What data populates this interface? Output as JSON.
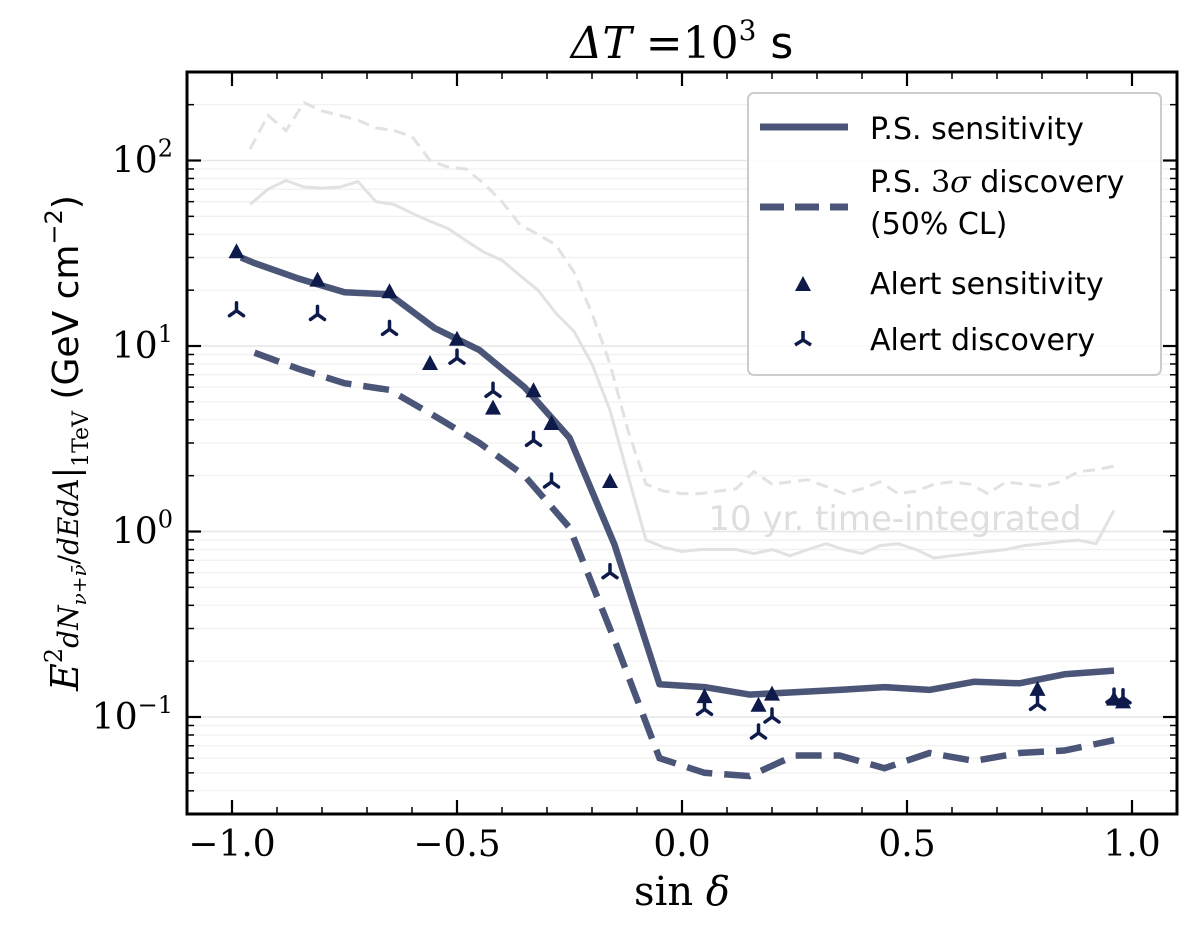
{
  "chart_data": {
    "type": "line",
    "title": "ΔT =10³ s",
    "xlabel": "sin δ",
    "ylabel": "E² dN/dEdA|1TeV (GeV cm⁻²)",
    "xlim": [
      -1.1,
      1.1
    ],
    "ylim": [
      0.03,
      300
    ],
    "yscale": "log",
    "xticks": [
      -1.0,
      -0.5,
      0.0,
      0.5,
      1.0
    ],
    "xtick_labels": [
      "−1.0",
      "−0.5",
      "0.0",
      "0.5",
      "1.0"
    ],
    "yticks": [
      0.1,
      1,
      10,
      100
    ],
    "ytick_labels": [
      "10",
      "10",
      "10",
      "10"
    ],
    "ytick_exponents": [
      "−1",
      "0",
      "1",
      "2"
    ],
    "grid": true,
    "legend_position": "top-right",
    "annotation": "10 yr. time-integrated",
    "series": [
      {
        "name": "P.S. sensitivity",
        "style": "solid",
        "color": "#4a5577",
        "x": [
          -0.98,
          -0.95,
          -0.85,
          -0.75,
          -0.65,
          -0.55,
          -0.45,
          -0.35,
          -0.25,
          -0.15,
          -0.05,
          0.05,
          0.15,
          0.25,
          0.35,
          0.45,
          0.55,
          0.65,
          0.75,
          0.85,
          0.96
        ],
        "y": [
          30,
          28,
          23,
          19.5,
          19,
          12.5,
          9.5,
          6,
          3.2,
          0.85,
          0.15,
          0.145,
          0.132,
          0.136,
          0.14,
          0.145,
          0.14,
          0.155,
          0.152,
          0.17,
          0.178
        ]
      },
      {
        "name": "P.S. 3σ discovery (50% CL)",
        "style": "dashed",
        "color": "#4a5577",
        "x": [
          -0.95,
          -0.85,
          -0.75,
          -0.65,
          -0.55,
          -0.45,
          -0.35,
          -0.25,
          -0.15,
          -0.05,
          0.05,
          0.15,
          0.25,
          0.35,
          0.45,
          0.55,
          0.65,
          0.75,
          0.85,
          0.96
        ],
        "y": [
          9.2,
          7.5,
          6.3,
          5.8,
          4.2,
          3.0,
          2.0,
          1.05,
          0.26,
          0.06,
          0.05,
          0.048,
          0.062,
          0.062,
          0.053,
          0.064,
          0.058,
          0.064,
          0.066,
          0.075
        ]
      },
      {
        "name": "Alert sensitivity",
        "style": "marker-triangle",
        "color": "#0d1a4a",
        "x": [
          -0.99,
          -0.81,
          -0.65,
          -0.56,
          -0.5,
          -0.42,
          -0.33,
          -0.29,
          -0.16,
          0.05,
          0.17,
          0.2,
          0.79,
          0.96,
          0.98
        ],
        "y": [
          32,
          22.5,
          19.5,
          8,
          10.8,
          4.6,
          5.7,
          3.8,
          1.85,
          0.128,
          0.115,
          0.132,
          0.14,
          0.124,
          0.12
        ]
      },
      {
        "name": "Alert discovery",
        "style": "marker-tri-down",
        "color": "#0d1a4a",
        "x": [
          -0.99,
          -0.81,
          -0.65,
          -0.5,
          -0.42,
          -0.33,
          -0.29,
          -0.16,
          0.05,
          0.17,
          0.2,
          0.79,
          0.96,
          0.98
        ],
        "y": [
          15.5,
          14.8,
          12.3,
          8.6,
          5.7,
          3.1,
          1.85,
          0.6,
          0.11,
          0.082,
          0.1,
          0.117,
          0.128,
          0.127
        ]
      },
      {
        "style": "solid-faint",
        "color": "#e2e2e2",
        "x": [
          -0.96,
          -0.92,
          -0.88,
          -0.84,
          -0.8,
          -0.76,
          -0.72,
          -0.68,
          -0.64,
          -0.6,
          -0.56,
          -0.52,
          -0.48,
          -0.44,
          -0.4,
          -0.36,
          -0.32,
          -0.28,
          -0.24,
          -0.2,
          -0.16,
          -0.12,
          -0.08,
          -0.04,
          0.0,
          0.04,
          0.08,
          0.12,
          0.16,
          0.2,
          0.24,
          0.28,
          0.32,
          0.36,
          0.4,
          0.44,
          0.48,
          0.52,
          0.56,
          0.6,
          0.64,
          0.68,
          0.72,
          0.76,
          0.8,
          0.84,
          0.88,
          0.92,
          0.96
        ],
        "y": [
          58,
          70,
          78,
          72,
          71,
          72,
          77,
          60,
          58,
          52,
          47,
          43,
          37,
          32,
          29,
          24,
          20,
          15,
          12,
          8,
          4.5,
          2.0,
          0.9,
          0.82,
          0.78,
          0.8,
          0.8,
          0.8,
          0.76,
          0.8,
          0.74,
          0.8,
          0.86,
          0.8,
          0.76,
          0.84,
          0.86,
          0.8,
          0.72,
          0.74,
          0.76,
          0.78,
          0.8,
          0.84,
          0.86,
          0.88,
          0.9,
          0.86,
          1.3
        ]
      },
      {
        "style": "dashed-faint",
        "color": "#e2e2e2",
        "x": [
          -0.96,
          -0.92,
          -0.88,
          -0.84,
          -0.8,
          -0.76,
          -0.72,
          -0.68,
          -0.64,
          -0.6,
          -0.56,
          -0.52,
          -0.48,
          -0.44,
          -0.4,
          -0.36,
          -0.32,
          -0.28,
          -0.24,
          -0.2,
          -0.16,
          -0.12,
          -0.08,
          -0.04,
          0.0,
          0.04,
          0.08,
          0.12,
          0.16,
          0.2,
          0.24,
          0.28,
          0.32,
          0.36,
          0.4,
          0.44,
          0.48,
          0.52,
          0.56,
          0.6,
          0.64,
          0.68,
          0.72,
          0.76,
          0.8,
          0.84,
          0.88,
          0.92,
          0.96
        ],
        "y": [
          115,
          175,
          145,
          205,
          185,
          175,
          165,
          150,
          145,
          135,
          100,
          92,
          90,
          75,
          60,
          45,
          40,
          35,
          25,
          15,
          8,
          3.5,
          1.8,
          1.65,
          1.6,
          1.6,
          1.65,
          1.7,
          2.1,
          1.8,
          1.85,
          1.9,
          1.75,
          1.6,
          1.7,
          1.85,
          1.6,
          1.65,
          1.8,
          1.85,
          1.8,
          1.6,
          1.85,
          1.8,
          1.75,
          1.85,
          2.1,
          2.15,
          2.25
        ]
      }
    ]
  }
}
